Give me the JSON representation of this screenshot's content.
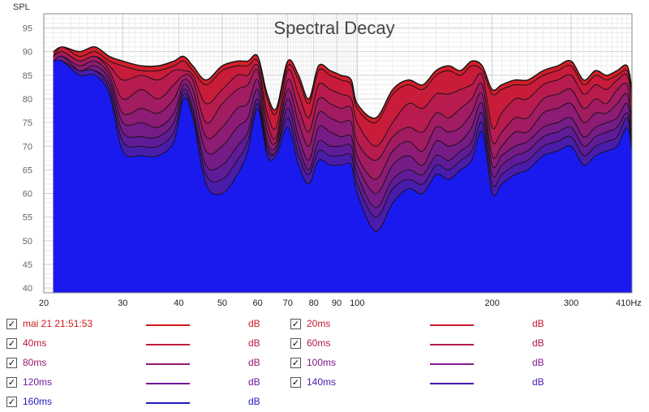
{
  "chart_data": {
    "type": "area",
    "title": "Spectral Decay",
    "ylabel": "SPL",
    "xunit": "Hz",
    "xscale": "log",
    "xlim": [
      20,
      410
    ],
    "ylim": [
      39,
      98
    ],
    "grid": true,
    "xticks": [
      {
        "value": 20,
        "label": "20"
      },
      {
        "value": 30,
        "label": "30"
      },
      {
        "value": 40,
        "label": "40"
      },
      {
        "value": 50,
        "label": "50"
      },
      {
        "value": 60,
        "label": "60"
      },
      {
        "value": 70,
        "label": "70"
      },
      {
        "value": 80,
        "label": "80"
      },
      {
        "value": 90,
        "label": "90"
      },
      {
        "value": 100,
        "label": "100"
      },
      {
        "value": 200,
        "label": "200"
      },
      {
        "value": 300,
        "label": "300"
      },
      {
        "value": 410,
        "label": "410Hz"
      }
    ],
    "yticks": [
      40,
      45,
      50,
      55,
      60,
      65,
      70,
      75,
      80,
      85,
      90,
      95
    ],
    "freqs": [
      21,
      22,
      24,
      26,
      28,
      30,
      33,
      36,
      39,
      41,
      43,
      46,
      50,
      54,
      57,
      60,
      63,
      66,
      70,
      74,
      78,
      82,
      87,
      92,
      97,
      100,
      110,
      120,
      130,
      140,
      150,
      160,
      170,
      180,
      190,
      200,
      210,
      225,
      240,
      260,
      280,
      300,
      320,
      340,
      360,
      380,
      400,
      410
    ],
    "series": [
      {
        "name": "mai 21 21:51:53",
        "color": "#d0202a",
        "values": [
          90,
          91,
          90,
          91,
          89,
          88,
          87,
          87,
          88,
          89,
          87,
          84,
          87,
          88,
          88,
          89,
          81,
          78,
          88,
          85,
          80,
          87,
          86,
          85,
          84,
          79,
          76,
          82,
          84,
          83,
          86,
          87,
          86,
          88,
          87,
          82,
          83,
          84,
          84,
          86,
          87,
          88,
          84,
          86,
          85,
          86,
          87,
          82
        ]
      },
      {
        "name": "20ms",
        "color": "#c81c3a",
        "values": [
          89,
          91,
          89,
          90,
          88,
          87,
          86,
          86,
          87,
          88,
          86,
          83,
          86,
          87,
          87,
          88,
          80,
          77,
          87,
          84,
          79,
          86,
          85,
          84,
          83,
          78,
          75,
          81,
          83,
          82,
          85,
          86,
          85,
          87,
          86,
          81,
          82,
          83,
          83,
          85,
          86,
          87,
          83,
          85,
          84,
          85,
          86,
          81
        ]
      },
      {
        "name": "40ms",
        "color": "#b81c4e",
        "values": [
          89,
          90,
          88,
          89,
          87,
          84,
          85,
          84,
          86,
          86,
          85,
          79,
          82,
          85,
          85,
          87,
          77,
          74,
          86,
          81,
          76,
          83,
          82,
          81,
          80,
          75,
          70,
          75,
          79,
          78,
          81,
          81,
          82,
          83,
          85,
          74,
          77,
          80,
          80,
          83,
          84,
          85,
          81,
          83,
          82,
          84,
          85,
          79
        ]
      },
      {
        "name": "60ms",
        "color": "#a21c62",
        "values": [
          89,
          90,
          88,
          89,
          86,
          80,
          82,
          80,
          83,
          85,
          84,
          75,
          79,
          82,
          83,
          86,
          75,
          72,
          84,
          78,
          73,
          80,
          79,
          78,
          78,
          71,
          67,
          72,
          74,
          73,
          77,
          76,
          78,
          80,
          83,
          71,
          73,
          76,
          76,
          80,
          81,
          82,
          78,
          80,
          79,
          82,
          83,
          76
        ]
      },
      {
        "name": "80ms",
        "color": "#8c1c74",
        "values": [
          88,
          89,
          87,
          88,
          85,
          77,
          78,
          77,
          80,
          84,
          82,
          72,
          74,
          78,
          79,
          84,
          73,
          71,
          82,
          75,
          70,
          77,
          76,
          75,
          75,
          68,
          63,
          69,
          71,
          69,
          74,
          73,
          74,
          77,
          81,
          68,
          70,
          73,
          73,
          77,
          78,
          79,
          75,
          77,
          77,
          79,
          81,
          74
        ]
      },
      {
        "name": "100ms",
        "color": "#761c86",
        "values": [
          88,
          89,
          86,
          87,
          84,
          75,
          75,
          74,
          77,
          83,
          80,
          69,
          70,
          74,
          76,
          82,
          71,
          70,
          80,
          72,
          67,
          74,
          73,
          72,
          72,
          66,
          60,
          66,
          68,
          66,
          71,
          70,
          71,
          74,
          79,
          66,
          68,
          70,
          71,
          74,
          75,
          76,
          72,
          74,
          75,
          76,
          79,
          72
        ]
      },
      {
        "name": "120ms",
        "color": "#601c98",
        "values": [
          88,
          88,
          86,
          86,
          83,
          73,
          72,
          72,
          75,
          82,
          78,
          66,
          66,
          70,
          73,
          80,
          70,
          69,
          78,
          70,
          65,
          71,
          70,
          70,
          70,
          64,
          57,
          63,
          65,
          64,
          68,
          67,
          69,
          71,
          77,
          64,
          66,
          68,
          69,
          72,
          73,
          74,
          70,
          72,
          73,
          74,
          77,
          71
        ]
      },
      {
        "name": "140ms",
        "color": "#4a1caa",
        "values": [
          88,
          88,
          86,
          86,
          82,
          71,
          70,
          70,
          73,
          81,
          77,
          64,
          63,
          67,
          71,
          79,
          69,
          69,
          76,
          68,
          64,
          69,
          68,
          68,
          68,
          62,
          55,
          61,
          63,
          62,
          66,
          65,
          67,
          69,
          75,
          62,
          64,
          66,
          67,
          70,
          71,
          72,
          68,
          70,
          71,
          72,
          76,
          70
        ]
      },
      {
        "name": "160ms",
        "color": "#2a1ac0",
        "values": [
          88,
          88,
          85,
          85,
          81,
          69,
          68,
          68,
          71,
          80,
          76,
          62,
          60,
          64,
          69,
          78,
          68,
          68,
          74,
          66,
          62,
          67,
          66,
          66,
          66,
          60,
          52,
          58,
          61,
          60,
          64,
          63,
          65,
          67,
          73,
          60,
          62,
          64,
          65,
          68,
          69,
          70,
          66,
          68,
          69,
          70,
          74,
          69
        ]
      }
    ]
  },
  "legend": {
    "items": [
      {
        "label": "mai 21 21:51:53",
        "unit": "dB",
        "color": "#d01818",
        "text_color": "#d01818",
        "checked": "✓"
      },
      {
        "label": "20ms",
        "unit": "dB",
        "color": "#c8182e",
        "text_color": "#c8182e",
        "checked": "✓"
      },
      {
        "label": "40ms",
        "unit": "dB",
        "color": "#c0183c",
        "text_color": "#c0183c",
        "checked": "✓"
      },
      {
        "label": "60ms",
        "unit": "dB",
        "color": "#b01850",
        "text_color": "#b01850",
        "checked": "✓"
      },
      {
        "label": "80ms",
        "unit": "dB",
        "color": "#961870",
        "text_color": "#961870",
        "checked": "✓"
      },
      {
        "label": "100ms",
        "unit": "dB",
        "color": "#82188a",
        "text_color": "#82188a",
        "checked": "✓"
      },
      {
        "label": "120ms",
        "unit": "dB",
        "color": "#6e18a0",
        "text_color": "#6e18a0",
        "checked": "✓"
      },
      {
        "label": "140ms",
        "unit": "dB",
        "color": "#4a18b0",
        "text_color": "#4a18b0",
        "checked": "✓"
      },
      {
        "label": "160ms",
        "unit": "dB",
        "color": "#2218c0",
        "text_color": "#2218c0",
        "checked": "✓"
      }
    ]
  },
  "colors": {
    "background": "#ffffff",
    "plot_border": "#8a8a8a",
    "grid_major": "#cfcfcf",
    "grid_minor": "#ececec",
    "base_fill": "#1a1aee"
  }
}
